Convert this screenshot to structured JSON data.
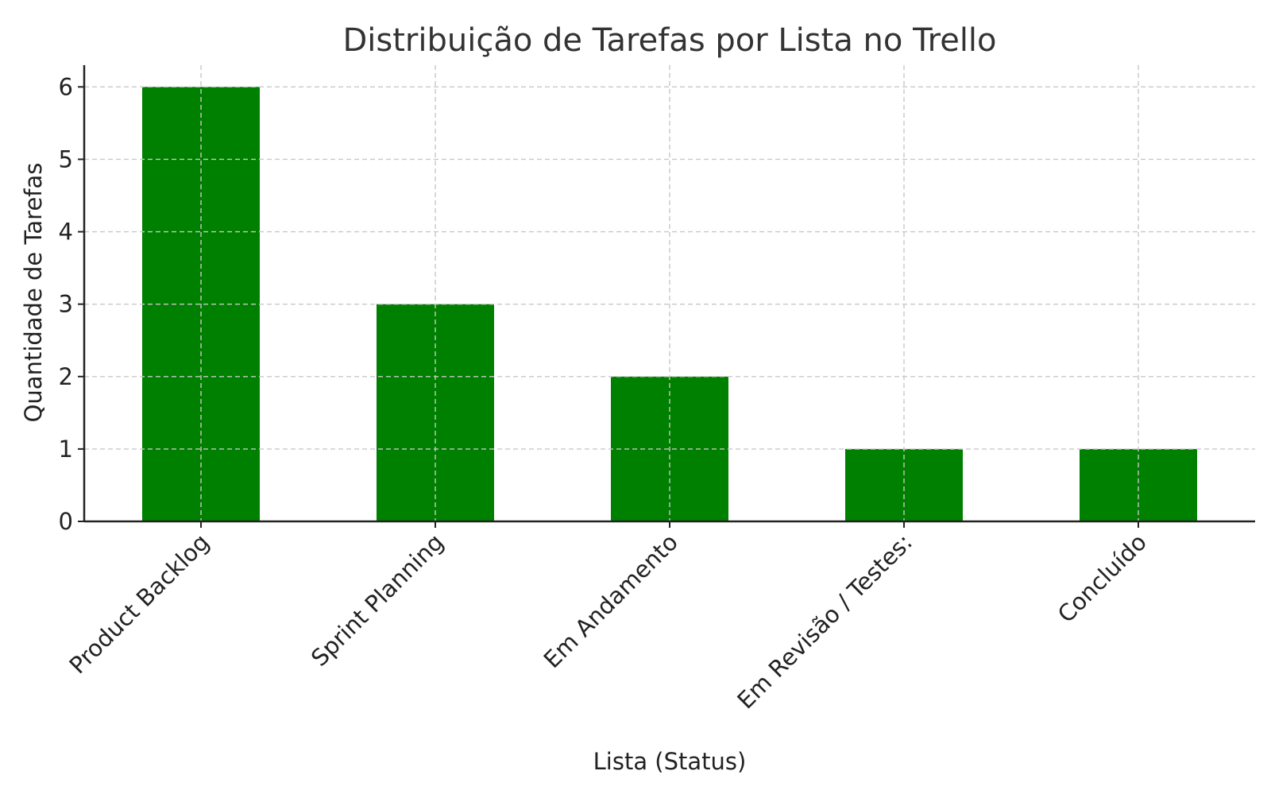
{
  "chart_data": {
    "type": "bar",
    "title": "Distribuição de Tarefas por Lista no Trello",
    "xlabel": "Lista (Status)",
    "ylabel": "Quantidade de Tarefas",
    "categories": [
      "Product Backlog",
      "Sprint Planning",
      "Em Andamento",
      "Em Revisão / Testes:",
      "Concluído"
    ],
    "values": [
      6,
      3,
      2,
      1,
      1
    ],
    "ylim": [
      0,
      6.3
    ],
    "yticks": [
      0,
      1,
      2,
      3,
      4,
      5,
      6
    ],
    "grid": true,
    "bar_color": "#008000"
  }
}
